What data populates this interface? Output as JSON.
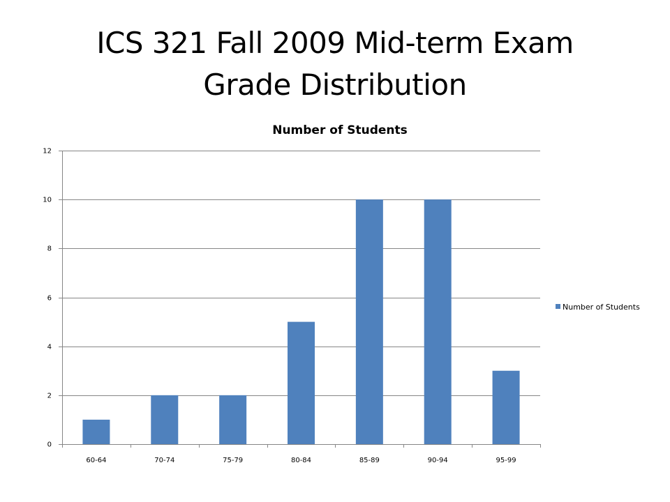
{
  "slide": {
    "title_line1": "ICS 321 Fall 2009 Mid-term Exam",
    "title_line2": "Grade Distribution"
  },
  "chart_data": {
    "type": "bar",
    "title": "Number of Students",
    "categories": [
      "60-64",
      "70-74",
      "75-79",
      "80-84",
      "85-89",
      "90-94",
      "95-99"
    ],
    "series": [
      {
        "name": "Number of Students",
        "values": [
          1,
          2,
          2,
          5,
          10,
          10,
          3
        ]
      }
    ],
    "xlabel": "",
    "ylabel": "",
    "ylim": [
      0,
      12
    ],
    "yticks": [
      0,
      2,
      4,
      6,
      8,
      10,
      12
    ],
    "grid": true,
    "legend_position": "right",
    "bar_color": "#4F81BD",
    "grid_color": "#868686"
  }
}
